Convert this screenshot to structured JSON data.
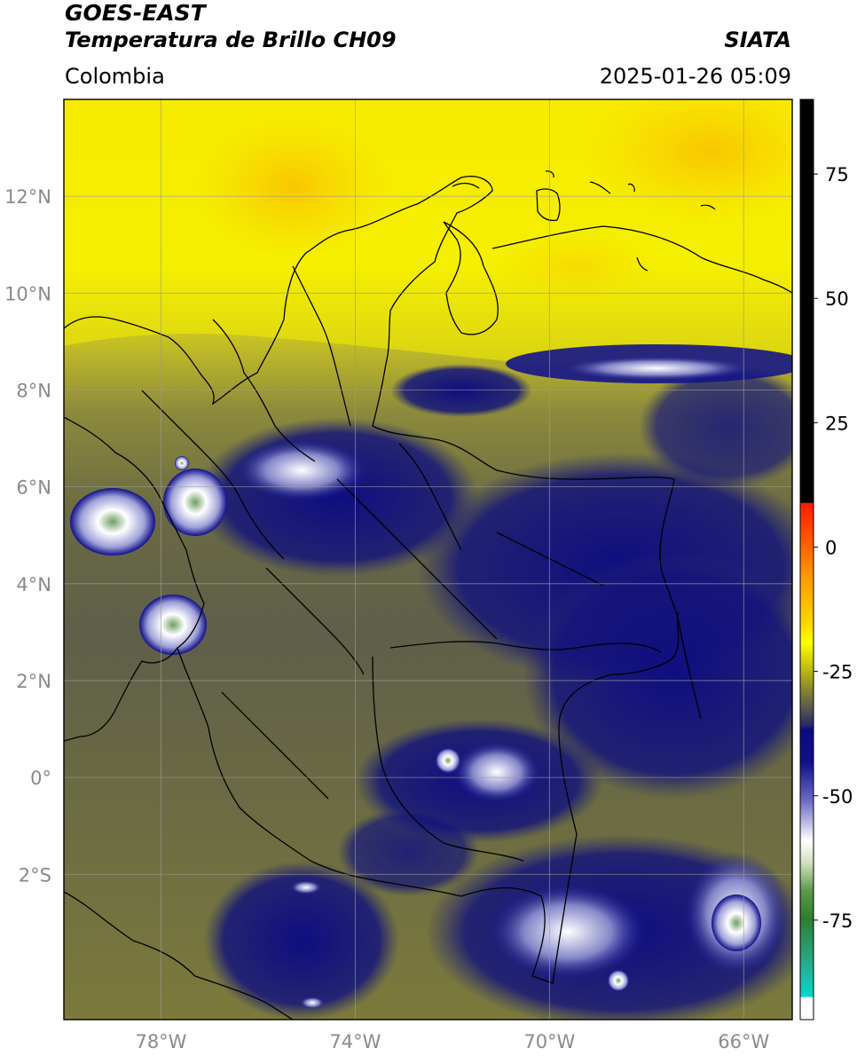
{
  "header": {
    "satellite": "GOES-EAST",
    "product": "Temperatura de Brillo CH09",
    "brand": "SIATA",
    "region": "Colombia",
    "datetime": "2025-01-26 05:09"
  },
  "map": {
    "lat_labels": [
      "12°N",
      "10°N",
      "8°N",
      "6°N",
      "4°N",
      "2°N",
      "0°",
      "2°S"
    ],
    "lon_labels": [
      "78°W",
      "74°W",
      "70°W",
      "66°W"
    ],
    "lat_values": [
      12,
      10,
      8,
      6,
      4,
      2,
      0,
      -2
    ],
    "lon_values": [
      -78,
      -74,
      -70,
      -66
    ],
    "lat_range": [
      -5,
      14
    ],
    "lon_range": [
      -80,
      -65
    ],
    "grid": true
  },
  "colorbar": {
    "ticks": [
      "75",
      "50",
      "25",
      "0",
      "-25",
      "-50",
      "-75"
    ],
    "tick_values": [
      75,
      50,
      25,
      0,
      -25,
      -50,
      -75
    ],
    "range": [
      -95,
      90
    ],
    "colors": {
      "warm_top": "#000000",
      "red": "#ff1a00",
      "orange": "#ff9a00",
      "yellow": "#ffff00",
      "olive": "#6a6a3e",
      "navy": "#0c0c7e",
      "white": "#ffffff",
      "green": "#2f7d2f",
      "cyan": "#00d8d0"
    }
  }
}
